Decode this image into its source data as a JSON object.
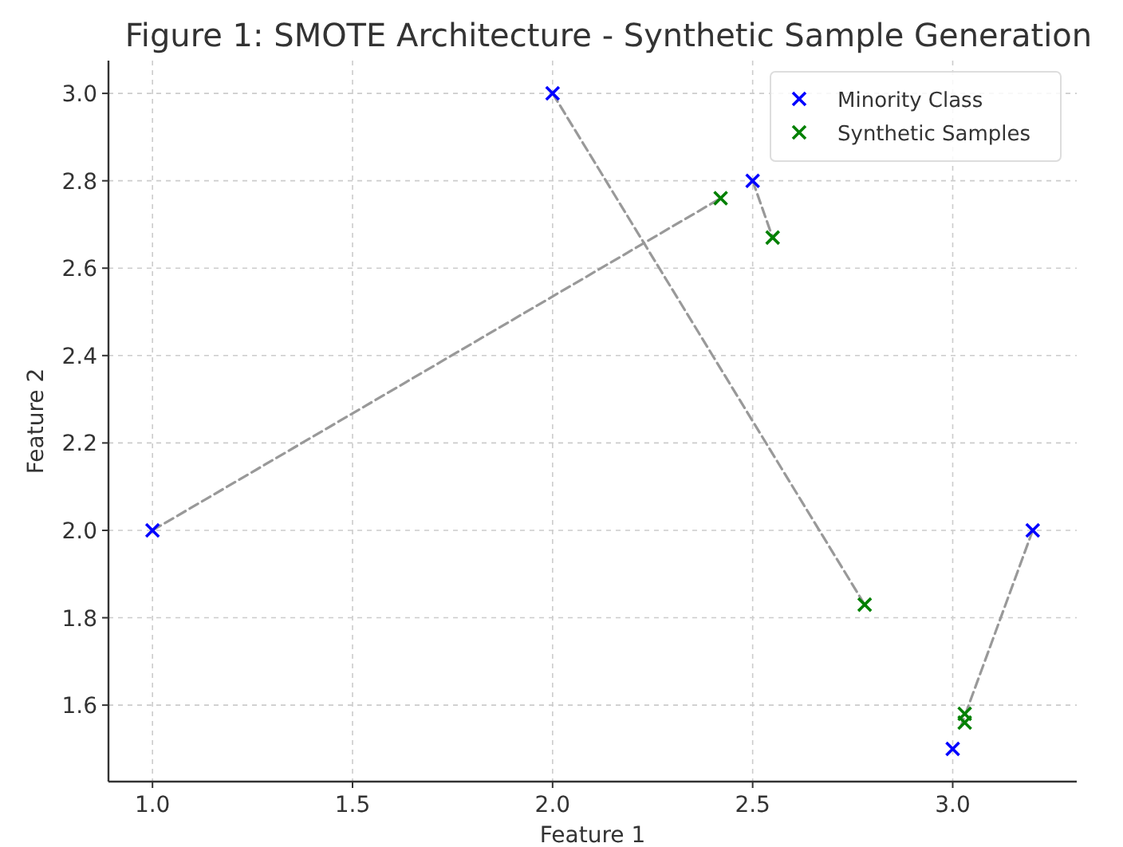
{
  "chart_data": {
    "type": "scatter",
    "title": "Figure 1: SMOTE Architecture - Synthetic Sample Generation",
    "xlabel": "Feature 1",
    "ylabel": "Feature 2",
    "xlim": [
      0.89,
      3.31
    ],
    "ylim": [
      1.425,
      3.075
    ],
    "xticks": [
      {
        "value": 1,
        "label": "1.0"
      },
      1.5,
      {
        "value": 2,
        "label": "2.0"
      },
      2.5,
      {
        "value": 3,
        "label": "3.0"
      }
    ],
    "yticks": [
      1.6,
      1.8,
      {
        "value": 2,
        "label": "2.0"
      },
      2.2,
      2.4,
      2.6,
      2.8,
      {
        "value": 3,
        "label": "3.0"
      }
    ],
    "grid": true,
    "legend": "top right",
    "marker": "cross",
    "series": [
      {
        "type": "line",
        "color": "#999999",
        "line_style": "dashed",
        "marker": "none",
        "x": [
          1.0,
          2.42
        ],
        "values": [
          2.0,
          2.76
        ]
      },
      {
        "type": "line",
        "color": "#999999",
        "line_style": "dashed",
        "marker": "none",
        "x": [
          2.5,
          2.55
        ],
        "values": [
          2.8,
          2.67
        ]
      },
      {
        "type": "line",
        "color": "#999999",
        "line_style": "dashed",
        "marker": "none",
        "x": [
          2.0,
          2.78
        ],
        "values": [
          3.0,
          1.83
        ]
      },
      {
        "type": "line",
        "color": "#999999",
        "line_style": "dashed",
        "marker": "none",
        "x": [
          3.2,
          3.02
        ],
        "values": [
          2.0,
          1.55
        ]
      },
      {
        "name": "Minority Class",
        "color": "#0000ff",
        "x": [
          1.0,
          2.0,
          2.5,
          3.0,
          3.2
        ],
        "values": [
          2.0,
          3.0,
          2.8,
          1.5,
          2.0
        ]
      },
      {
        "name": "Synthetic Samples",
        "color": "#008000",
        "x": [
          2.42,
          2.55,
          2.78,
          3.03,
          3.03
        ],
        "values": [
          2.76,
          2.67,
          1.83,
          1.58,
          1.56
        ]
      }
    ]
  }
}
